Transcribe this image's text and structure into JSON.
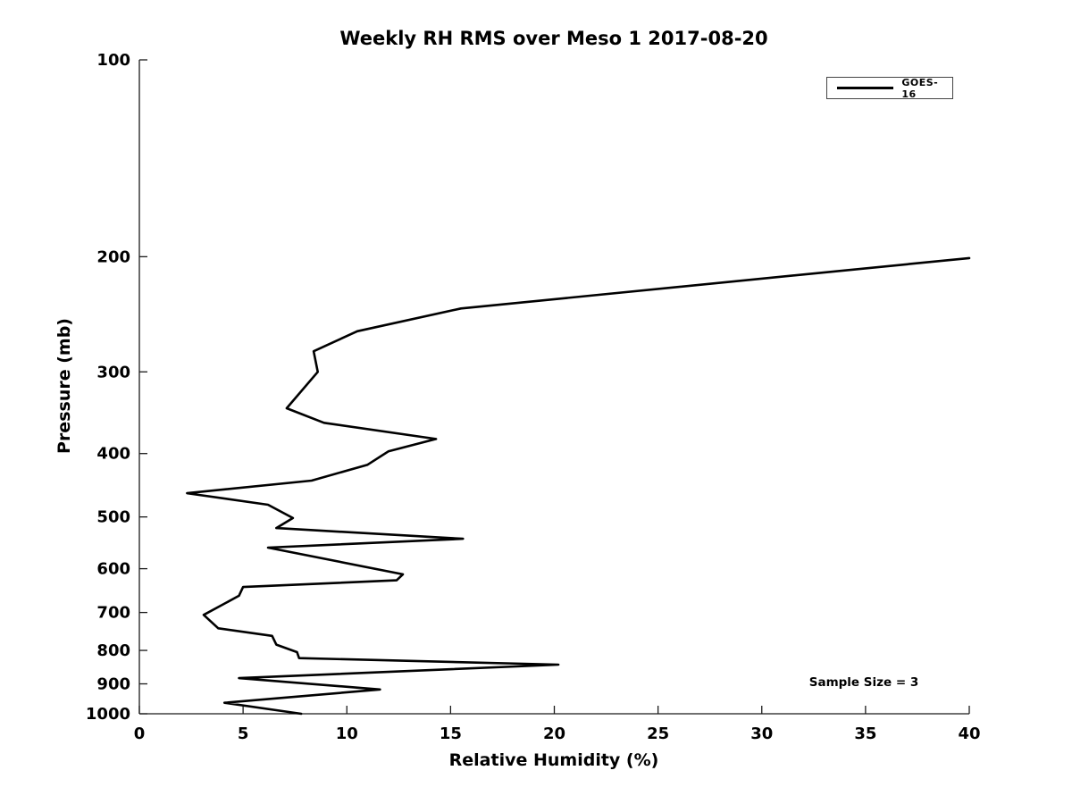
{
  "chart_data": {
    "type": "line",
    "title": "Weekly RH RMS over Meso 1 2017-08-20",
    "xlabel": "Relative Humidity (%)",
    "ylabel": "Pressure (mb)",
    "xlim": [
      0,
      40
    ],
    "ylim": [
      100,
      1000
    ],
    "yscale": "log",
    "y_inverted": true,
    "grid": false,
    "xticks": [
      0,
      5,
      10,
      15,
      20,
      25,
      30,
      35,
      40
    ],
    "yticks": [
      100,
      200,
      300,
      400,
      500,
      600,
      700,
      800,
      900,
      1000
    ],
    "legend_position": "top-right",
    "line_color": "#000000",
    "series": [
      {
        "name": "GOES-16",
        "points_format": "[relative_humidity_percent, pressure_mb]",
        "points": [
          [
            40.0,
            201
          ],
          [
            15.5,
            240
          ],
          [
            10.5,
            260
          ],
          [
            8.4,
            279
          ],
          [
            8.6,
            300
          ],
          [
            7.1,
            341
          ],
          [
            8.9,
            359
          ],
          [
            14.3,
            380
          ],
          [
            12.0,
            397
          ],
          [
            11.0,
            416
          ],
          [
            8.3,
            440
          ],
          [
            2.3,
            460
          ],
          [
            6.2,
            479
          ],
          [
            7.4,
            502
          ],
          [
            6.6,
            520
          ],
          [
            15.6,
            540
          ],
          [
            6.2,
            557
          ],
          [
            12.7,
            612
          ],
          [
            12.4,
            625
          ],
          [
            5.0,
            640
          ],
          [
            4.8,
            660
          ],
          [
            3.1,
            706
          ],
          [
            3.8,
            740
          ],
          [
            6.4,
            760
          ],
          [
            6.6,
            784
          ],
          [
            7.6,
            805
          ],
          [
            7.7,
            822
          ],
          [
            20.2,
            841
          ],
          [
            4.8,
            882
          ],
          [
            11.6,
            918
          ],
          [
            4.1,
            962
          ],
          [
            7.8,
            1000
          ]
        ]
      }
    ],
    "annotation": "Sample Size = 3"
  },
  "legend": {
    "entries": [
      {
        "label": "GOES-16",
        "color": "#000000"
      }
    ]
  }
}
